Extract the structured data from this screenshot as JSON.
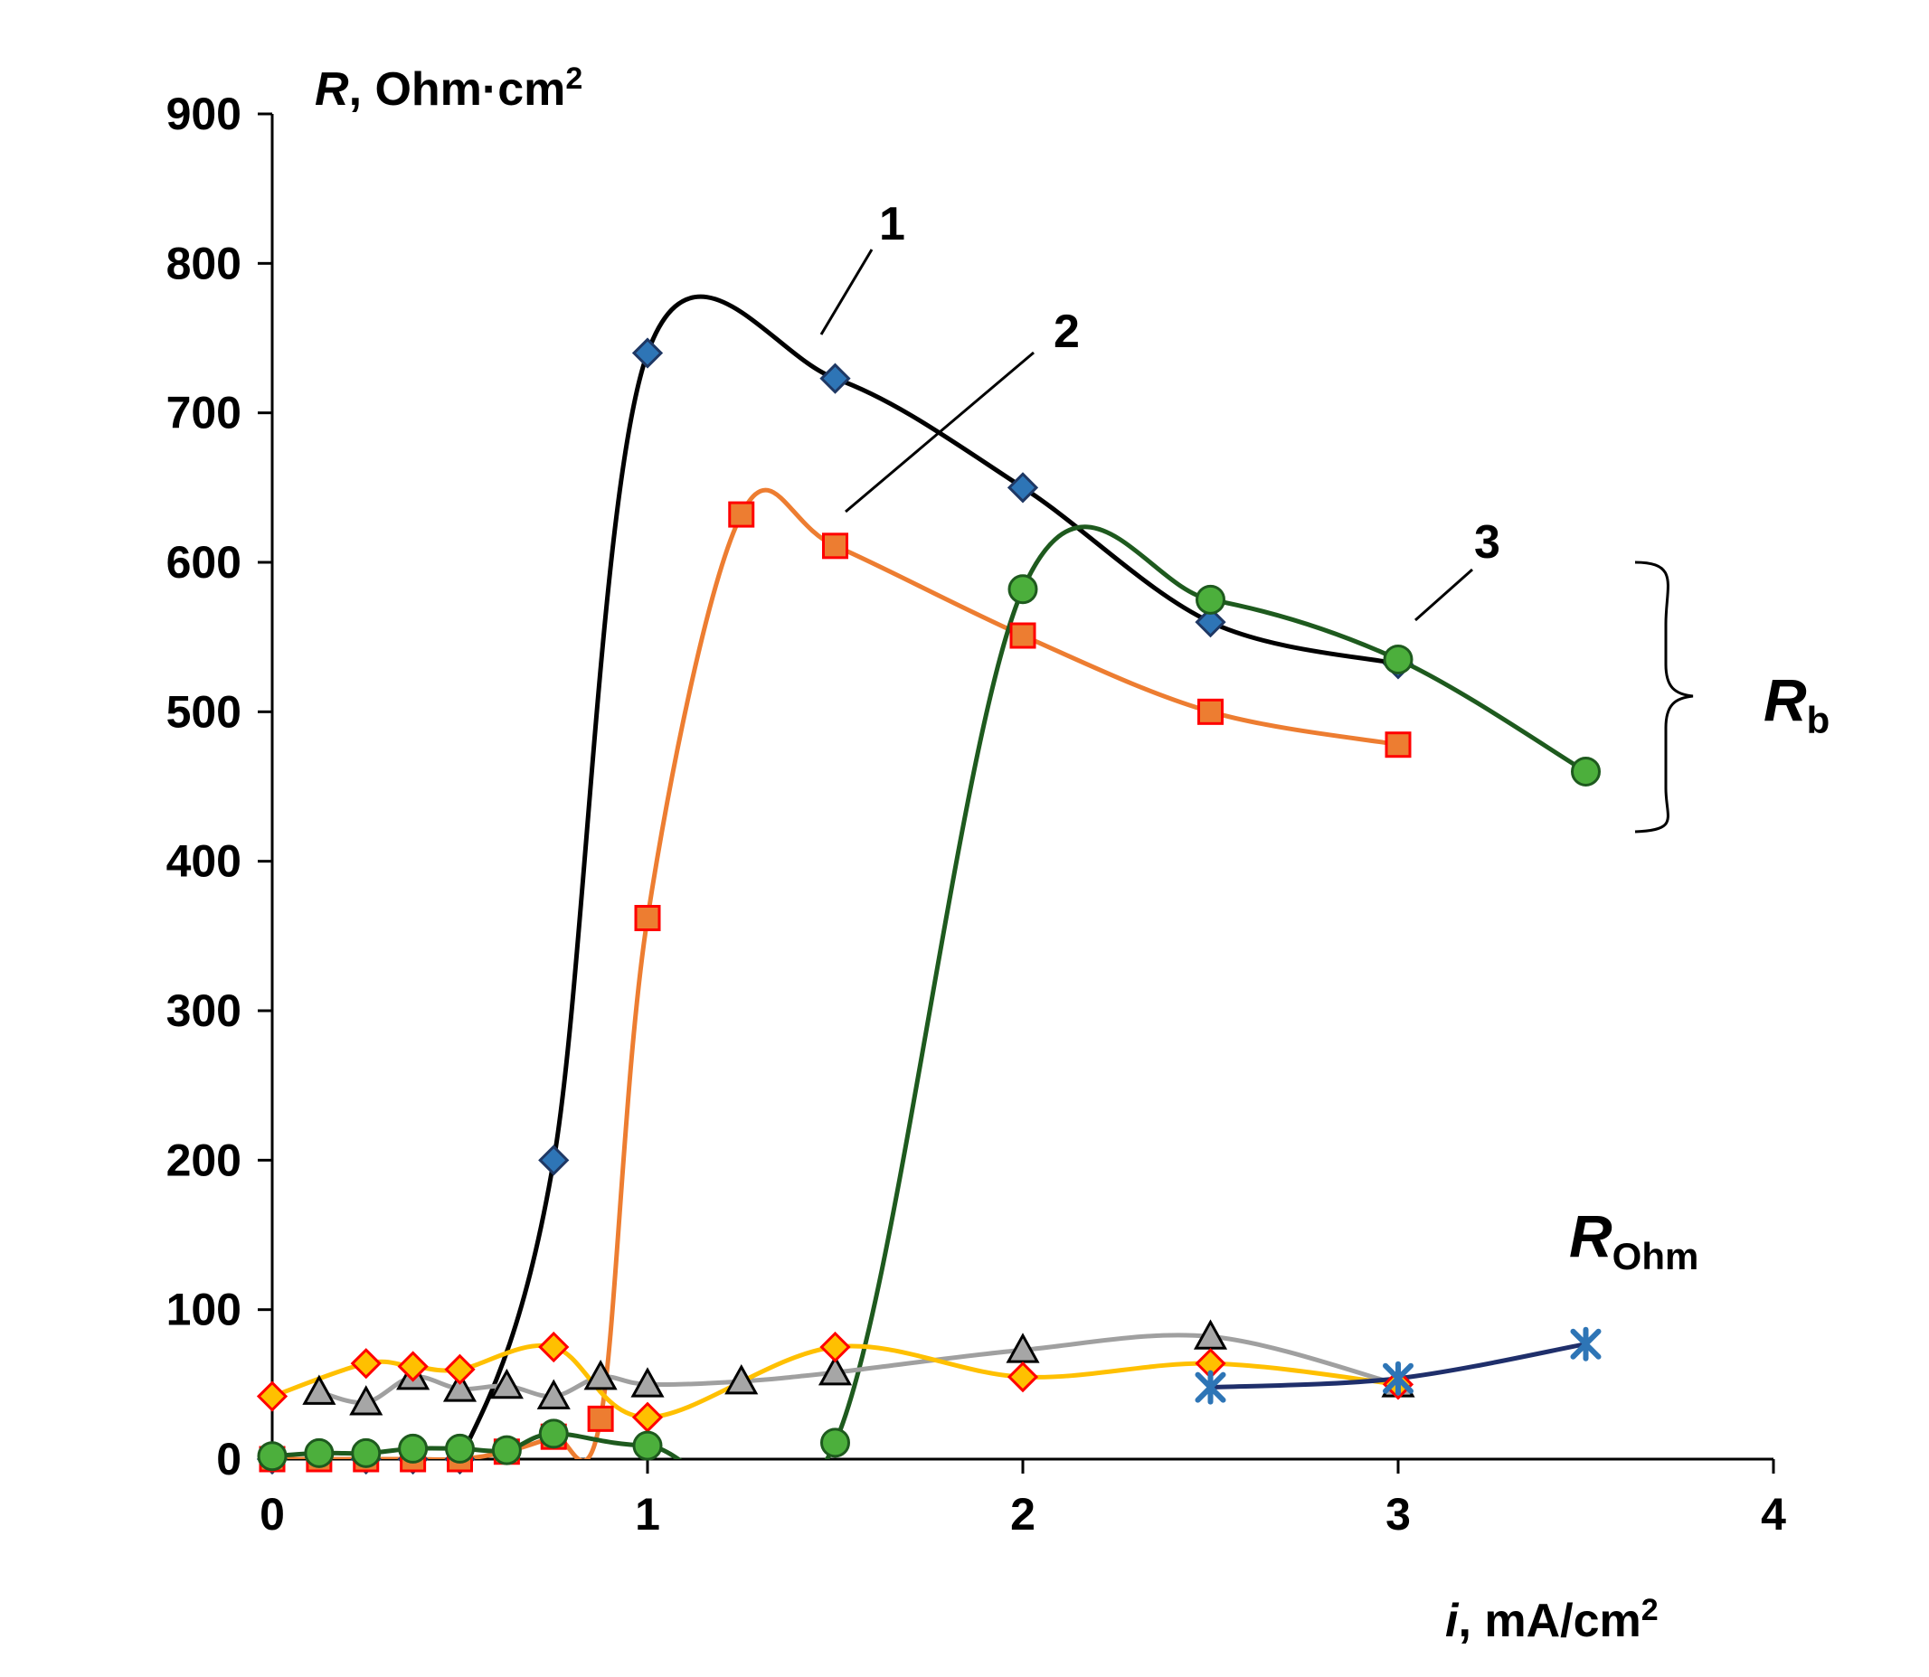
{
  "chart_data": {
    "type": "scatter",
    "xlabel": {
      "var": "i",
      "unit": ", mA/cm",
      "sup": "2"
    },
    "ylabel": {
      "var": "R",
      "unit": ", Ohm·cm",
      "sup": "2"
    },
    "xlim": [
      0,
      4
    ],
    "ylim": [
      0,
      900
    ],
    "xticks": [
      "0",
      "1",
      "2",
      "3",
      "4"
    ],
    "yticks": [
      "0",
      "100",
      "200",
      "300",
      "400",
      "500",
      "600",
      "700",
      "800",
      "900"
    ],
    "group_labels": {
      "rb": {
        "main": "R",
        "sub": "b"
      },
      "rohm": {
        "main": "R",
        "sub": "Ohm"
      }
    },
    "curve_labels": [
      {
        "text": "1",
        "series": "Rb-1"
      },
      {
        "text": "2",
        "series": "Rb-2"
      },
      {
        "text": "3",
        "series": "Rb-3"
      }
    ],
    "series": [
      {
        "name": "Rb-1",
        "group": "Rb",
        "line": "#000000",
        "marker": "diamond",
        "fill": "#2e75b6",
        "stroke": "#1f3864",
        "x": [
          0,
          0.25,
          0.375,
          0.5,
          0.75,
          1.0,
          1.5,
          2.0,
          2.5,
          3.0
        ],
        "y": [
          0,
          0,
          0,
          0,
          200,
          740,
          723,
          650,
          560,
          532
        ]
      },
      {
        "name": "Rb-2",
        "group": "Rb",
        "line": "#ed7d31",
        "marker": "square",
        "fill": "#ed7d31",
        "stroke": "#ff0000",
        "x": [
          0,
          0.125,
          0.25,
          0.375,
          0.5,
          0.625,
          0.75,
          0.875,
          1.0,
          1.25,
          1.5,
          2.0,
          2.5,
          3.0
        ],
        "y": [
          0,
          0,
          0,
          0,
          0,
          5,
          15,
          27,
          362,
          632,
          611,
          551,
          500,
          478
        ]
      },
      {
        "name": "Rb-3",
        "group": "Rb",
        "line": "#1e5a1e",
        "marker": "circle",
        "fill": "#4caf3c",
        "stroke": "#1e5a1e",
        "x": [
          0,
          0.125,
          0.25,
          0.375,
          0.5,
          0.625,
          0.75,
          1.0,
          1.5,
          2.0,
          2.5,
          3.0,
          3.5
        ],
        "y": [
          2,
          4,
          4,
          7,
          7,
          6,
          17,
          9,
          11,
          582,
          575,
          535,
          460
        ]
      },
      {
        "name": "ROhm-1",
        "group": "ROhm",
        "line": "#a0a0a0",
        "marker": "triangle",
        "fill": "#a6a6a6",
        "stroke": "#000000",
        "x": [
          0.125,
          0.25,
          0.375,
          0.5,
          0.625,
          0.75,
          0.875,
          1.0,
          1.25,
          1.5,
          2.0,
          2.5,
          3.0
        ],
        "y": [
          45,
          38,
          55,
          47,
          49,
          42,
          55,
          50,
          52,
          58,
          73,
          82,
          50
        ]
      },
      {
        "name": "ROhm-2",
        "group": "ROhm",
        "line": "#ffc000",
        "marker": "diamond",
        "fill": "#ffc000",
        "stroke": "#ff0000",
        "x": [
          0,
          0.25,
          0.375,
          0.5,
          0.75,
          1.0,
          1.5,
          2.0,
          2.5,
          3.0
        ],
        "y": [
          42,
          64,
          62,
          60,
          75,
          28,
          75,
          55,
          64,
          50
        ]
      },
      {
        "name": "ROhm-3",
        "group": "ROhm",
        "line": "#1f2f6b",
        "marker": "star",
        "fill": "#2e75b6",
        "stroke": "#2e75b6",
        "x": [
          2.5,
          3.0,
          3.5
        ],
        "y": [
          48,
          54,
          77
        ]
      }
    ]
  }
}
